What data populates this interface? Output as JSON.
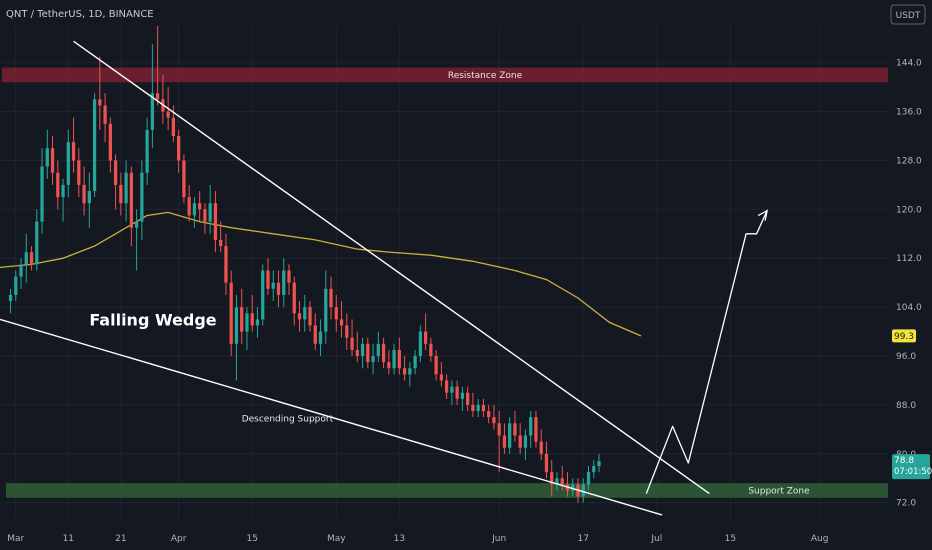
{
  "header": {
    "title": "QNT / TetherUS, 1D, BINANCE",
    "currency_button": "USDT"
  },
  "colors": {
    "background": "#141821",
    "grid": "#1f2430",
    "bull": "#26a69a",
    "bear": "#ef5350",
    "ma": "#c9b13c",
    "resistance_zone": "#7a2030",
    "support_zone": "#2e5a36",
    "wedge_line": "#ffffff"
  },
  "badges": {
    "ma_value": "99.3",
    "price": "78.8",
    "countdown": "07:01:50"
  },
  "chart_data": {
    "type": "candlestick",
    "symbol": "QNT / TetherUS",
    "interval": "1D",
    "exchange": "BINANCE",
    "y_ticks": [
      "72.0",
      "80.0",
      "88.0",
      "96.0",
      "104.0",
      "112.0",
      "120.0",
      "128.0",
      "136.0",
      "144.0"
    ],
    "ylim": [
      69.5,
      150
    ],
    "x_ticks": [
      {
        "label": "Mar",
        "day": 1
      },
      {
        "label": "11",
        "day": 11
      },
      {
        "label": "21",
        "day": 21
      },
      {
        "label": "Apr",
        "day": 32
      },
      {
        "label": "15",
        "day": 46
      },
      {
        "label": "May",
        "day": 62
      },
      {
        "label": "13",
        "day": 74
      },
      {
        "label": "Jun",
        "day": 93
      },
      {
        "label": "17",
        "day": 109
      },
      {
        "label": "Jul",
        "day": 123
      },
      {
        "label": "15",
        "day": 137
      },
      {
        "label": "Aug",
        "day": 154
      }
    ],
    "xlim": [
      -2,
      167
    ],
    "candles": [
      [
        105,
        107,
        103,
        106
      ],
      [
        106,
        110,
        105,
        109
      ],
      [
        109,
        112,
        107,
        111
      ],
      [
        111,
        116,
        108,
        113
      ],
      [
        113,
        114,
        110,
        111
      ],
      [
        111,
        120,
        110,
        118
      ],
      [
        118,
        130,
        116,
        127
      ],
      [
        127,
        133,
        125,
        130
      ],
      [
        130,
        132,
        124,
        126
      ],
      [
        126,
        128,
        120,
        122
      ],
      [
        122,
        125,
        118,
        124
      ],
      [
        124,
        133,
        122,
        131
      ],
      [
        131,
        135,
        126,
        128
      ],
      [
        128,
        130,
        122,
        124
      ],
      [
        124,
        127,
        119,
        121
      ],
      [
        121,
        126,
        117,
        123
      ],
      [
        123,
        139,
        122,
        138
      ],
      [
        138,
        145,
        133,
        137
      ],
      [
        137,
        139,
        131,
        134
      ],
      [
        134,
        135,
        126,
        128
      ],
      [
        128,
        129,
        120,
        124
      ],
      [
        124,
        126,
        119,
        121
      ],
      [
        121,
        128,
        118,
        126
      ],
      [
        126,
        127,
        114,
        117
      ],
      [
        117,
        120,
        110,
        118
      ],
      [
        118,
        128,
        115,
        126
      ],
      [
        126,
        135,
        124,
        133
      ],
      [
        133,
        147,
        130,
        139
      ],
      [
        139,
        150,
        137,
        138
      ],
      [
        138,
        142,
        134,
        136
      ],
      [
        136,
        140,
        133,
        135
      ],
      [
        135,
        137,
        131,
        132
      ],
      [
        132,
        133,
        126,
        128
      ],
      [
        128,
        129,
        121,
        122
      ],
      [
        122,
        124,
        118,
        119
      ],
      [
        119,
        122,
        117,
        121
      ],
      [
        121,
        123,
        118,
        120
      ],
      [
        120,
        121,
        116,
        118
      ],
      [
        118,
        124,
        116,
        121
      ],
      [
        121,
        123,
        113,
        115
      ],
      [
        115,
        118,
        113,
        114
      ],
      [
        114,
        116,
        106,
        108
      ],
      [
        108,
        110,
        96,
        98
      ],
      [
        98,
        106,
        92,
        104
      ],
      [
        104,
        107,
        98,
        100
      ],
      [
        100,
        104,
        97,
        103
      ],
      [
        103,
        106,
        100,
        101
      ],
      [
        101,
        104,
        99,
        102
      ],
      [
        102,
        111,
        101,
        110
      ],
      [
        110,
        112,
        106,
        107
      ],
      [
        107,
        110,
        105,
        108
      ],
      [
        108,
        110,
        104,
        106
      ],
      [
        106,
        112,
        104,
        110
      ],
      [
        110,
        111,
        106,
        108
      ],
      [
        108,
        109,
        101,
        103
      ],
      [
        103,
        105,
        100,
        102
      ],
      [
        102,
        106,
        100,
        104
      ],
      [
        104,
        105,
        100,
        101
      ],
      [
        101,
        103,
        97,
        98
      ],
      [
        98,
        102,
        96,
        100
      ],
      [
        100,
        110,
        98,
        107
      ],
      [
        107,
        109,
        102,
        104
      ],
      [
        104,
        106,
        100,
        102
      ],
      [
        102,
        105,
        99,
        101
      ],
      [
        101,
        103,
        97,
        99
      ],
      [
        99,
        102,
        96,
        97
      ],
      [
        97,
        100,
        95,
        96
      ],
      [
        96,
        99,
        94,
        98
      ],
      [
        98,
        99,
        94,
        95
      ],
      [
        95,
        98,
        93,
        96
      ],
      [
        96,
        100,
        95,
        98
      ],
      [
        98,
        99,
        94,
        95
      ],
      [
        95,
        97,
        93,
        94
      ],
      [
        94,
        98,
        93,
        97
      ],
      [
        97,
        99,
        93,
        94
      ],
      [
        94,
        96,
        92,
        93
      ],
      [
        93,
        95,
        91,
        94
      ],
      [
        94,
        97,
        93,
        96
      ],
      [
        96,
        101,
        95,
        100
      ],
      [
        100,
        103,
        97,
        98
      ],
      [
        98,
        99,
        95,
        96
      ],
      [
        96,
        97,
        92,
        93
      ],
      [
        93,
        95,
        91,
        92
      ],
      [
        92,
        93,
        89,
        90
      ],
      [
        90,
        92,
        88,
        91
      ],
      [
        91,
        92,
        88,
        89
      ],
      [
        89,
        91,
        87,
        90
      ],
      [
        90,
        91,
        87,
        88
      ],
      [
        88,
        90,
        86,
        87
      ],
      [
        87,
        89,
        86,
        88
      ],
      [
        88,
        89,
        86,
        87
      ],
      [
        87,
        88,
        85,
        86
      ],
      [
        86,
        88,
        84,
        85
      ],
      [
        85,
        87,
        77,
        83
      ],
      [
        83,
        85,
        80,
        81
      ],
      [
        81,
        86,
        80,
        85
      ],
      [
        85,
        87,
        82,
        83
      ],
      [
        83,
        85,
        80,
        81
      ],
      [
        81,
        84,
        79,
        83
      ],
      [
        83,
        87,
        81,
        86
      ],
      [
        86,
        87,
        81,
        82
      ],
      [
        82,
        84,
        79,
        80
      ],
      [
        80,
        82,
        76,
        77
      ],
      [
        77,
        79,
        73,
        75
      ],
      [
        75,
        77,
        74,
        76
      ],
      [
        76,
        78,
        74,
        75
      ],
      [
        75,
        77,
        73,
        74
      ],
      [
        74,
        76,
        73,
        75
      ],
      [
        75,
        76,
        72,
        73
      ],
      [
        73,
        76,
        72,
        75
      ],
      [
        75,
        78,
        74,
        77
      ],
      [
        77,
        79,
        76,
        78
      ],
      [
        78,
        80,
        77,
        78.8
      ]
    ],
    "ma_line": [
      [
        -2,
        110.5
      ],
      [
        4,
        111
      ],
      [
        10,
        112
      ],
      [
        16,
        114
      ],
      [
        22,
        117
      ],
      [
        26,
        119
      ],
      [
        30,
        119.5
      ],
      [
        36,
        118
      ],
      [
        42,
        117
      ],
      [
        50,
        116
      ],
      [
        58,
        115
      ],
      [
        66,
        113.5
      ],
      [
        72,
        113
      ],
      [
        80,
        112.5
      ],
      [
        88,
        111.5
      ],
      [
        96,
        110
      ],
      [
        102,
        108.5
      ],
      [
        108,
        105.5
      ],
      [
        114,
        101.5
      ],
      [
        120,
        99.3
      ]
    ],
    "annotations": {
      "resistance_zone": {
        "label": "Resistance Zone",
        "y_range": [
          140.8,
          143.2
        ]
      },
      "support_zone": {
        "label": "Support Zone",
        "y_range": [
          72.8,
          75.2
        ]
      },
      "upper_trendline": [
        [
          12,
          147.5
        ],
        [
          133,
          73.5
        ]
      ],
      "lower_trendline": [
        [
          -2,
          102
        ],
        [
          124,
          70
        ]
      ],
      "projection_path": [
        [
          121,
          73.5
        ],
        [
          126,
          84.5
        ],
        [
          129,
          78.5
        ],
        [
          140,
          116
        ],
        [
          142,
          116
        ],
        [
          144,
          119.8
        ]
      ],
      "falling_wedge_label": "Falling Wedge",
      "descending_support_label": "Descending Support"
    }
  }
}
